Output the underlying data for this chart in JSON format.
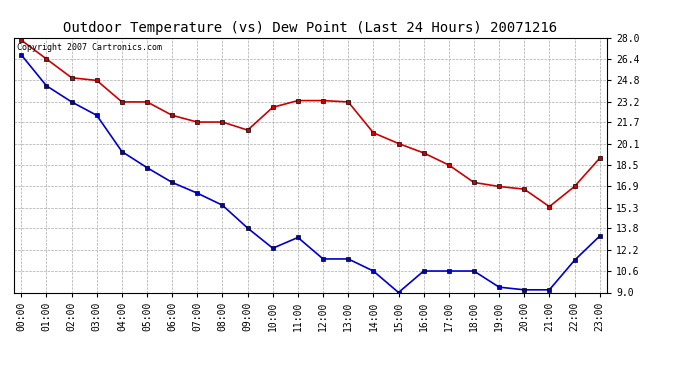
{
  "title": "Outdoor Temperature (vs) Dew Point (Last 24 Hours) 20071216",
  "copyright_text": "Copyright 2007 Cartronics.com",
  "hours": [
    "00:00",
    "01:00",
    "02:00",
    "03:00",
    "04:00",
    "05:00",
    "06:00",
    "07:00",
    "08:00",
    "09:00",
    "10:00",
    "11:00",
    "12:00",
    "13:00",
    "14:00",
    "15:00",
    "16:00",
    "17:00",
    "18:00",
    "19:00",
    "20:00",
    "21:00",
    "22:00",
    "23:00"
  ],
  "temp_red": [
    27.8,
    26.4,
    25.0,
    24.8,
    23.2,
    23.2,
    22.2,
    21.7,
    21.7,
    21.1,
    22.8,
    23.3,
    23.3,
    23.2,
    20.9,
    20.1,
    19.4,
    18.5,
    17.2,
    16.9,
    16.7,
    15.4,
    16.9,
    19.0
  ],
  "temp_blue": [
    26.7,
    24.4,
    23.2,
    22.2,
    19.5,
    18.3,
    17.2,
    16.4,
    15.5,
    13.8,
    12.3,
    13.1,
    11.5,
    11.5,
    10.6,
    9.0,
    10.6,
    10.6,
    10.6,
    9.4,
    9.2,
    9.2,
    11.4,
    13.2
  ],
  "ylim": [
    9.0,
    28.0
  ],
  "yticks": [
    9.0,
    10.6,
    12.2,
    13.8,
    15.3,
    16.9,
    18.5,
    20.1,
    21.7,
    23.2,
    24.8,
    26.4,
    28.0
  ],
  "line_color_red": "#cc0000",
  "line_color_blue": "#0000cc",
  "marker_color": "#000000",
  "bg_color": "#ffffff",
  "grid_color": "#aaaaaa",
  "title_fontsize": 10,
  "tick_fontsize": 7,
  "copyright_fontsize": 6
}
